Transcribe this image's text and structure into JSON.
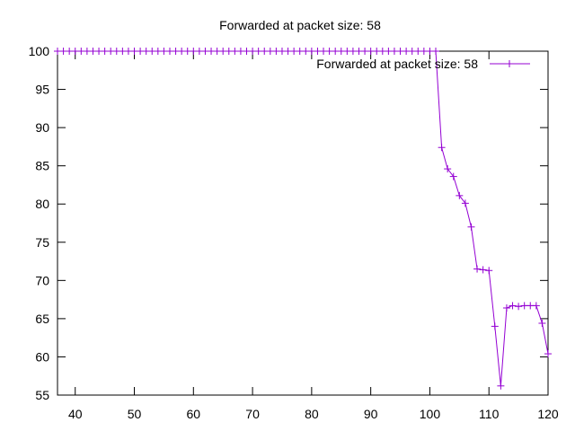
{
  "chart_data": {
    "type": "line",
    "title": "Forwarded at packet size: 58",
    "xlabel": "",
    "ylabel": "",
    "xlim": [
      37,
      120
    ],
    "ylim": [
      55,
      100
    ],
    "xticks": [
      40,
      50,
      60,
      70,
      80,
      90,
      100,
      110,
      120
    ],
    "yticks": [
      55,
      60,
      65,
      70,
      75,
      80,
      85,
      90,
      95,
      100
    ],
    "grid": false,
    "legend_position": "top-right",
    "series": [
      {
        "name": "Forwarded at packet size: 58",
        "color": "#9400d3",
        "marker": "plus",
        "x": [
          37,
          38,
          39,
          40,
          41,
          42,
          43,
          44,
          45,
          46,
          47,
          48,
          49,
          50,
          51,
          52,
          53,
          54,
          55,
          56,
          57,
          58,
          59,
          60,
          61,
          62,
          63,
          64,
          65,
          66,
          67,
          68,
          69,
          70,
          71,
          72,
          73,
          74,
          75,
          76,
          77,
          78,
          79,
          80,
          81,
          82,
          83,
          84,
          85,
          86,
          87,
          88,
          89,
          90,
          91,
          92,
          93,
          94,
          95,
          96,
          97,
          98,
          99,
          100,
          101,
          102,
          103,
          104,
          105,
          106,
          107,
          108,
          109,
          110,
          111,
          112,
          113,
          114,
          115,
          116,
          117,
          118,
          119,
          120
        ],
        "y": [
          100,
          100,
          100,
          100,
          100,
          100,
          100,
          100,
          100,
          100,
          100,
          100,
          100,
          100,
          100,
          100,
          100,
          100,
          100,
          100,
          100,
          100,
          100,
          100,
          100,
          100,
          100,
          100,
          100,
          100,
          100,
          100,
          100,
          100,
          100,
          100,
          100,
          100,
          100,
          100,
          100,
          100,
          100,
          100,
          100,
          100,
          100,
          100,
          100,
          100,
          100,
          100,
          100,
          100,
          100,
          100,
          100,
          100,
          100,
          100,
          100,
          100,
          100,
          100,
          100,
          87.4,
          84.6,
          83.6,
          81.1,
          80.1,
          77,
          71.5,
          71.4,
          71.3,
          64,
          56.2,
          66.4,
          66.7,
          66.6,
          66.7,
          66.7,
          66.7,
          64.4,
          60.4
        ]
      }
    ]
  }
}
